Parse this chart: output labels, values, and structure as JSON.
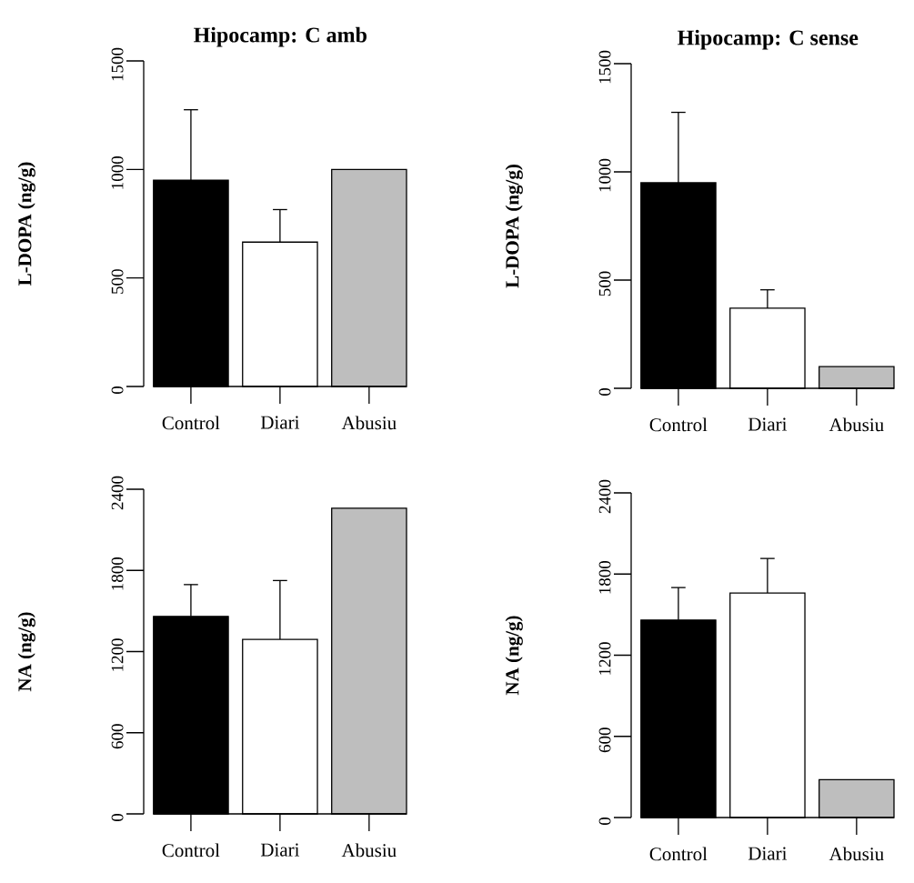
{
  "chart_data": [
    {
      "type": "bar",
      "title": "Hipocamp: C amb",
      "ylabel": "L-DOPA (ng/g)",
      "categories": [
        "Control",
        "Diari",
        "Abusiu"
      ],
      "values": [
        950,
        665,
        1000
      ],
      "colors": [
        "#000000",
        "#ffffff",
        "#bebebe"
      ],
      "errors": [
        [
          950,
          1275
        ],
        [
          665,
          815
        ],
        null
      ],
      "ylim": [
        0,
        1500
      ],
      "yticks": [
        0,
        500,
        1000,
        1500
      ]
    },
    {
      "type": "bar",
      "title": "Hipocamp: C sense",
      "ylabel": "L-DOPA (ng/g)",
      "categories": [
        "Control",
        "Diari",
        "Abusiu"
      ],
      "values": [
        950,
        370,
        100
      ],
      "colors": [
        "#000000",
        "#ffffff",
        "#bebebe"
      ],
      "errors": [
        [
          950,
          1275
        ],
        [
          370,
          455
        ],
        null
      ],
      "ylim": [
        0,
        1500
      ],
      "yticks": [
        0,
        500,
        1000,
        1500
      ]
    },
    {
      "type": "bar",
      "ylabel": "NA (ng/g)",
      "categories": [
        "Control",
        "Diari",
        "Abusiu"
      ],
      "values": [
        1460,
        1290,
        2260
      ],
      "colors": [
        "#000000",
        "#ffffff",
        "#bebebe"
      ],
      "errors": [
        [
          1460,
          1695
        ],
        [
          1290,
          1725
        ],
        null
      ],
      "ylim": [
        0,
        2400
      ],
      "yticks": [
        0,
        600,
        1200,
        1800,
        2400
      ]
    },
    {
      "type": "bar",
      "ylabel": "NA (ng/g)",
      "categories": [
        "Control",
        "Diari",
        "Abusiu"
      ],
      "values": [
        1460,
        1660,
        280
      ],
      "colors": [
        "#000000",
        "#ffffff",
        "#bebebe"
      ],
      "errors": [
        [
          1460,
          1700
        ],
        [
          1660,
          1915
        ],
        null
      ],
      "ylim": [
        0,
        2400
      ],
      "yticks": [
        0,
        600,
        1200,
        1800,
        2400
      ]
    }
  ]
}
